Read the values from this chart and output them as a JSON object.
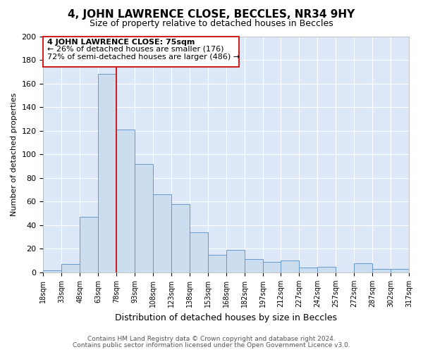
{
  "title": "4, JOHN LAWRENCE CLOSE, BECCLES, NR34 9HY",
  "subtitle": "Size of property relative to detached houses in Beccles",
  "xlabel": "Distribution of detached houses by size in Beccles",
  "ylabel": "Number of detached properties",
  "bar_color": "#ccddf0",
  "bar_edge_color": "#6699cc",
  "grid_color": "#d0d8e8",
  "bg_color": "#dce8f8",
  "categories": [
    "18sqm",
    "33sqm",
    "48sqm",
    "63sqm",
    "78sqm",
    "93sqm",
    "108sqm",
    "123sqm",
    "138sqm",
    "153sqm",
    "168sqm",
    "182sqm",
    "197sqm",
    "212sqm",
    "227sqm",
    "242sqm",
    "257sqm",
    "272sqm",
    "287sqm",
    "302sqm",
    "317sqm"
  ],
  "values": [
    2,
    7,
    47,
    168,
    121,
    92,
    66,
    58,
    34,
    15,
    19,
    11,
    9,
    10,
    4,
    5,
    0,
    8,
    3,
    3,
    0
  ],
  "ylim": [
    0,
    200
  ],
  "yticks": [
    0,
    20,
    40,
    60,
    80,
    100,
    120,
    140,
    160,
    180,
    200
  ],
  "annotation_title": "4 JOHN LAWRENCE CLOSE: 75sqm",
  "annotation_line2": "← 26% of detached houses are smaller (176)",
  "annotation_line3": "72% of semi-detached houses are larger (486) →",
  "footer1": "Contains HM Land Registry data © Crown copyright and database right 2024.",
  "footer2": "Contains public sector information licensed under the Open Government Licence v3.0."
}
